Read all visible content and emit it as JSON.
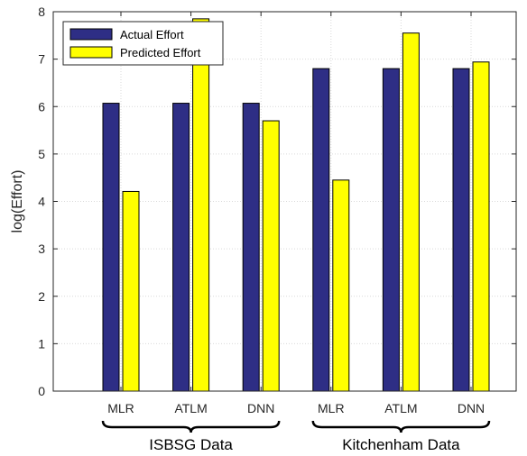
{
  "chart_data": {
    "type": "bar",
    "categories": [
      "MLR",
      "ATLM",
      "DNN",
      "MLR",
      "ATLM",
      "DNN"
    ],
    "groups": [
      {
        "label": "ISBSG Data",
        "category_indices": [
          0,
          1,
          2
        ]
      },
      {
        "label": "Kitchenham Data",
        "category_indices": [
          3,
          4,
          5
        ]
      }
    ],
    "series": [
      {
        "name": "Actual Effort",
        "color": "#2e2e85",
        "values": [
          6.07,
          6.07,
          6.07,
          6.8,
          6.8,
          6.8
        ]
      },
      {
        "name": "Predicted Effort",
        "color": "#ffff00",
        "values": [
          4.21,
          7.85,
          5.7,
          4.45,
          7.55,
          6.94
        ]
      }
    ],
    "ylabel": "log(Effort)",
    "xlabel": "",
    "ylim": [
      0,
      8
    ],
    "yticks": [
      0,
      1,
      2,
      3,
      4,
      5,
      6,
      7,
      8
    ],
    "grid": true,
    "legend_position": "top-left"
  }
}
